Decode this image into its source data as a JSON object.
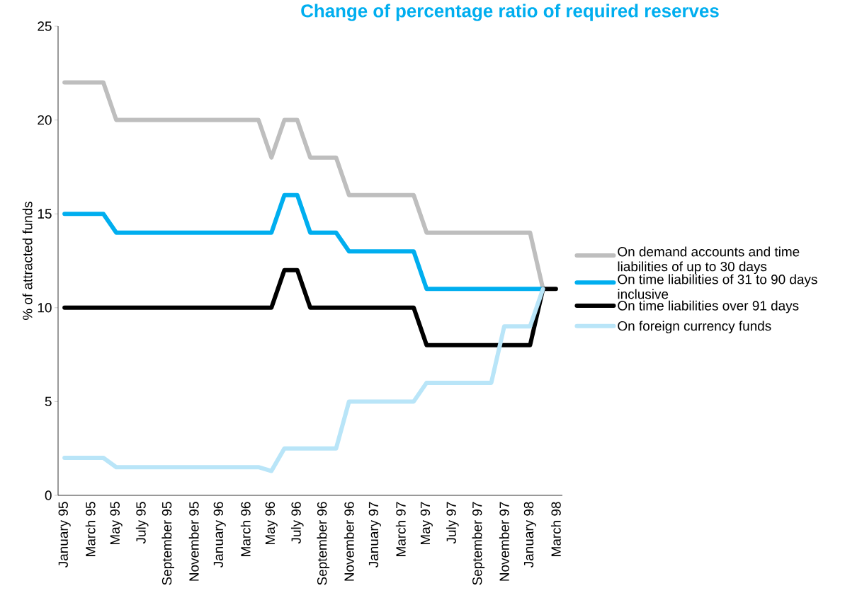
{
  "chart_data": {
    "type": "line",
    "title": "Change of percentage ratio of required reserves",
    "ylabel": "% of attracted funds",
    "categories": [
      "January 95",
      null,
      "March 95",
      null,
      "May 95",
      null,
      "July 95",
      null,
      "September 95",
      null,
      "November 95",
      null,
      "January 96",
      null,
      "March 96",
      null,
      "May 96",
      null,
      "July 96",
      null,
      "September 96",
      null,
      "November 96",
      null,
      "January 97",
      null,
      "March 97",
      null,
      "May 97",
      null,
      "July 97",
      null,
      "September 97",
      null,
      "November 97",
      null,
      "January 98",
      null,
      "March 98"
    ],
    "series": [
      {
        "name": "On demand accounts and time liabilities of up to 30 days",
        "color": "#bebebe",
        "values": [
          22,
          22,
          22,
          22,
          20,
          20,
          20,
          20,
          20,
          20,
          20,
          20,
          20,
          20,
          20,
          20,
          18,
          20,
          20,
          18,
          18,
          18,
          16,
          16,
          16,
          16,
          16,
          16,
          14,
          14,
          14,
          14,
          14,
          14,
          14,
          14,
          14,
          11,
          null
        ]
      },
      {
        "name": "On time liabilities of 31 to 90 days inclusive",
        "color": "#00aeef",
        "values": [
          15,
          15,
          15,
          15,
          14,
          14,
          14,
          14,
          14,
          14,
          14,
          14,
          14,
          14,
          14,
          14,
          14,
          16,
          16,
          14,
          14,
          14,
          13,
          13,
          13,
          13,
          13,
          13,
          11,
          11,
          11,
          11,
          11,
          11,
          11,
          11,
          11,
          11,
          null
        ]
      },
      {
        "name": "On time liabilities over 91 days",
        "color": "#000000",
        "values": [
          10,
          10,
          10,
          10,
          10,
          10,
          10,
          10,
          10,
          10,
          10,
          10,
          10,
          10,
          10,
          10,
          10,
          12,
          12,
          10,
          10,
          10,
          10,
          10,
          10,
          10,
          10,
          10,
          8,
          8,
          8,
          8,
          8,
          8,
          8,
          8,
          8,
          11,
          11
        ]
      },
      {
        "name": "On foreign currency funds",
        "color": "#b9e5f8",
        "values": [
          2,
          2,
          2,
          2,
          1.5,
          1.5,
          1.5,
          1.5,
          1.5,
          1.5,
          1.5,
          1.5,
          1.5,
          1.5,
          1.5,
          1.5,
          1.3,
          2.5,
          2.5,
          2.5,
          2.5,
          2.5,
          5,
          5,
          5,
          5,
          5,
          5,
          6,
          6,
          6,
          6,
          6,
          6,
          9,
          9,
          9,
          11,
          null
        ]
      }
    ],
    "ylim": [
      0,
      25
    ],
    "yticks": [
      0,
      5,
      10,
      15,
      20,
      25
    ],
    "legend": "right"
  }
}
